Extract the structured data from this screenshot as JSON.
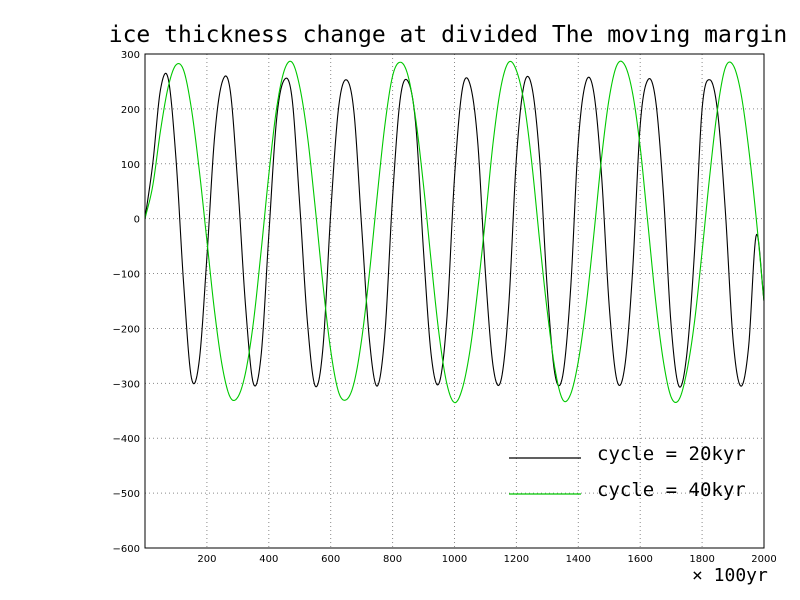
{
  "chart_data": {
    "type": "line",
    "title": "ice thickness  change at divided The moving margin",
    "xlabel": "",
    "ylabel": "",
    "x_unit_label": "× 100yr",
    "xlim": [
      0,
      2000
    ],
    "ylim": [
      -600,
      300
    ],
    "xticks": [
      200,
      400,
      600,
      800,
      1000,
      1200,
      1400,
      1600,
      1800,
      2000
    ],
    "xtick_labels": [
      "200",
      "400",
      "600",
      "800",
      "1000",
      "1200",
      "1400",
      "1600",
      "1800",
      "2000"
    ],
    "yticks": [
      -600,
      -500,
      -400,
      -300,
      -200,
      -100,
      0,
      100,
      200,
      300
    ],
    "ytick_labels": [
      "−600",
      "−500",
      "−400",
      "−300",
      "−200",
      "−100",
      "0",
      "100",
      "200",
      "300"
    ],
    "grid": true,
    "legend_position": "bottom-right",
    "series": [
      {
        "name": "cycle = 20kyr",
        "color": "#000000",
        "period": 200,
        "x": [
          0,
          25,
          50,
          75,
          100,
          125,
          150,
          175,
          200,
          225,
          250,
          275,
          300,
          325,
          350,
          375,
          400,
          425,
          450,
          475,
          500,
          525,
          550,
          575,
          600,
          625,
          650,
          675,
          700,
          725,
          750,
          775,
          800,
          825,
          850,
          875,
          900,
          925,
          950,
          975,
          1000,
          1025,
          1050,
          1075,
          1100,
          1125,
          1150,
          1175,
          1200,
          1225,
          1250,
          1275,
          1300,
          1325,
          1350,
          1375,
          1400,
          1425,
          1450,
          1475,
          1500,
          1525,
          1550,
          1575,
          1600,
          1625,
          1650,
          1675,
          1700,
          1725,
          1750,
          1775,
          1800,
          1825,
          1850,
          1875,
          1900,
          1925,
          1950,
          1975,
          2000
        ],
        "y": [
          0,
          100,
          235,
          255,
          110,
          -120,
          -290,
          -260,
          -70,
          150,
          250,
          235,
          60,
          -160,
          -300,
          -250,
          -30,
          180,
          253,
          220,
          25,
          -190,
          -305,
          -235,
          10,
          200,
          253,
          195,
          -15,
          -220,
          -305,
          -210,
          40,
          220,
          250,
          170,
          -60,
          -250,
          -300,
          -185,
          75,
          235,
          245,
          140,
          -100,
          -270,
          -295,
          -160,
          110,
          245,
          240,
          110,
          -130,
          -285,
          -285,
          -130,
          140,
          250,
          230,
          80,
          -160,
          -295,
          -270,
          -100,
          170,
          253,
          215,
          45,
          -195,
          -305,
          -250,
          -65,
          200,
          253,
          195,
          15,
          -220,
          -305,
          -235,
          -30,
          -150
        ]
      },
      {
        "name": "cycle = 40kyr",
        "color": "#00c800",
        "period": 400,
        "x": [
          0,
          25,
          50,
          75,
          100,
          125,
          150,
          175,
          200,
          225,
          250,
          275,
          300,
          325,
          350,
          375,
          400,
          425,
          450,
          475,
          500,
          525,
          550,
          575,
          600,
          625,
          650,
          675,
          700,
          725,
          750,
          775,
          800,
          825,
          850,
          875,
          900,
          925,
          950,
          975,
          1000,
          1025,
          1050,
          1075,
          1100,
          1125,
          1150,
          1175,
          1200,
          1225,
          1250,
          1275,
          1300,
          1325,
          1350,
          1375,
          1400,
          1425,
          1450,
          1475,
          1500,
          1525,
          1550,
          1575,
          1600,
          1625,
          1650,
          1675,
          1700,
          1725,
          1750,
          1775,
          1800,
          1825,
          1850,
          1875,
          1900,
          1925,
          1950,
          1975,
          2000
        ],
        "y": [
          0,
          60,
          160,
          240,
          280,
          270,
          200,
          90,
          -40,
          -170,
          -270,
          -325,
          -325,
          -280,
          -190,
          -60,
          80,
          200,
          270,
          285,
          240,
          150,
          20,
          -120,
          -240,
          -315,
          -330,
          -300,
          -220,
          -100,
          40,
          170,
          260,
          285,
          260,
          180,
          60,
          -80,
          -210,
          -300,
          -335,
          -310,
          -240,
          -130,
          0,
          140,
          240,
          285,
          270,
          210,
          100,
          -40,
          -170,
          -275,
          -330,
          -320,
          -260,
          -160,
          -30,
          110,
          220,
          280,
          280,
          230,
          130,
          -10,
          -150,
          -260,
          -325,
          -330,
          -280,
          -190,
          -60,
          80,
          200,
          275,
          280,
          230,
          130,
          0,
          -150
        ]
      }
    ]
  }
}
